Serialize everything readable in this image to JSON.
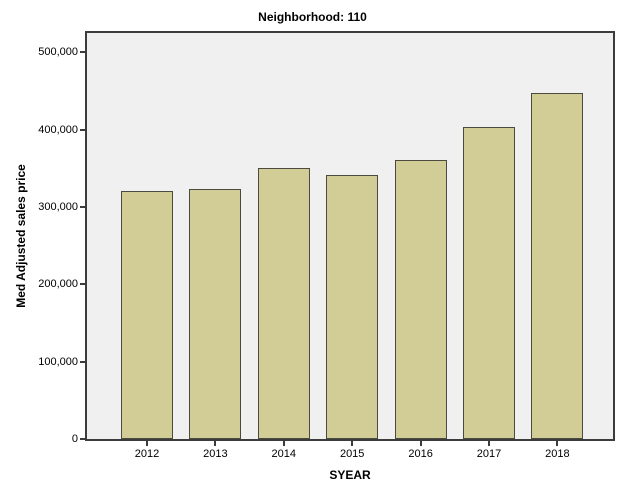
{
  "chart_data": {
    "type": "bar",
    "title": "Neighborhood: 110",
    "xlabel": "SYEAR",
    "ylabel": "Med Adjusted sales price",
    "categories": [
      "2012",
      "2013",
      "2014",
      "2015",
      "2016",
      "2017",
      "2018"
    ],
    "values": [
      321000,
      323000,
      351000,
      342000,
      361000,
      404000,
      448000
    ],
    "ylim": [
      0,
      525000
    ],
    "yticks": [
      0,
      100000,
      200000,
      300000,
      400000,
      500000
    ],
    "ytick_labels": [
      "0",
      "100,000",
      "200,000",
      "300,000",
      "400,000",
      "500,000"
    ],
    "grid": false,
    "legend": "none",
    "colors": {
      "bar_fill": "#D2CD96",
      "bar_border": "#4A4A3E",
      "plot_background": "#F0F0F0",
      "frame_border": "#3C3C3C",
      "page_background": "#FFFFFF",
      "text": "#000000"
    }
  }
}
